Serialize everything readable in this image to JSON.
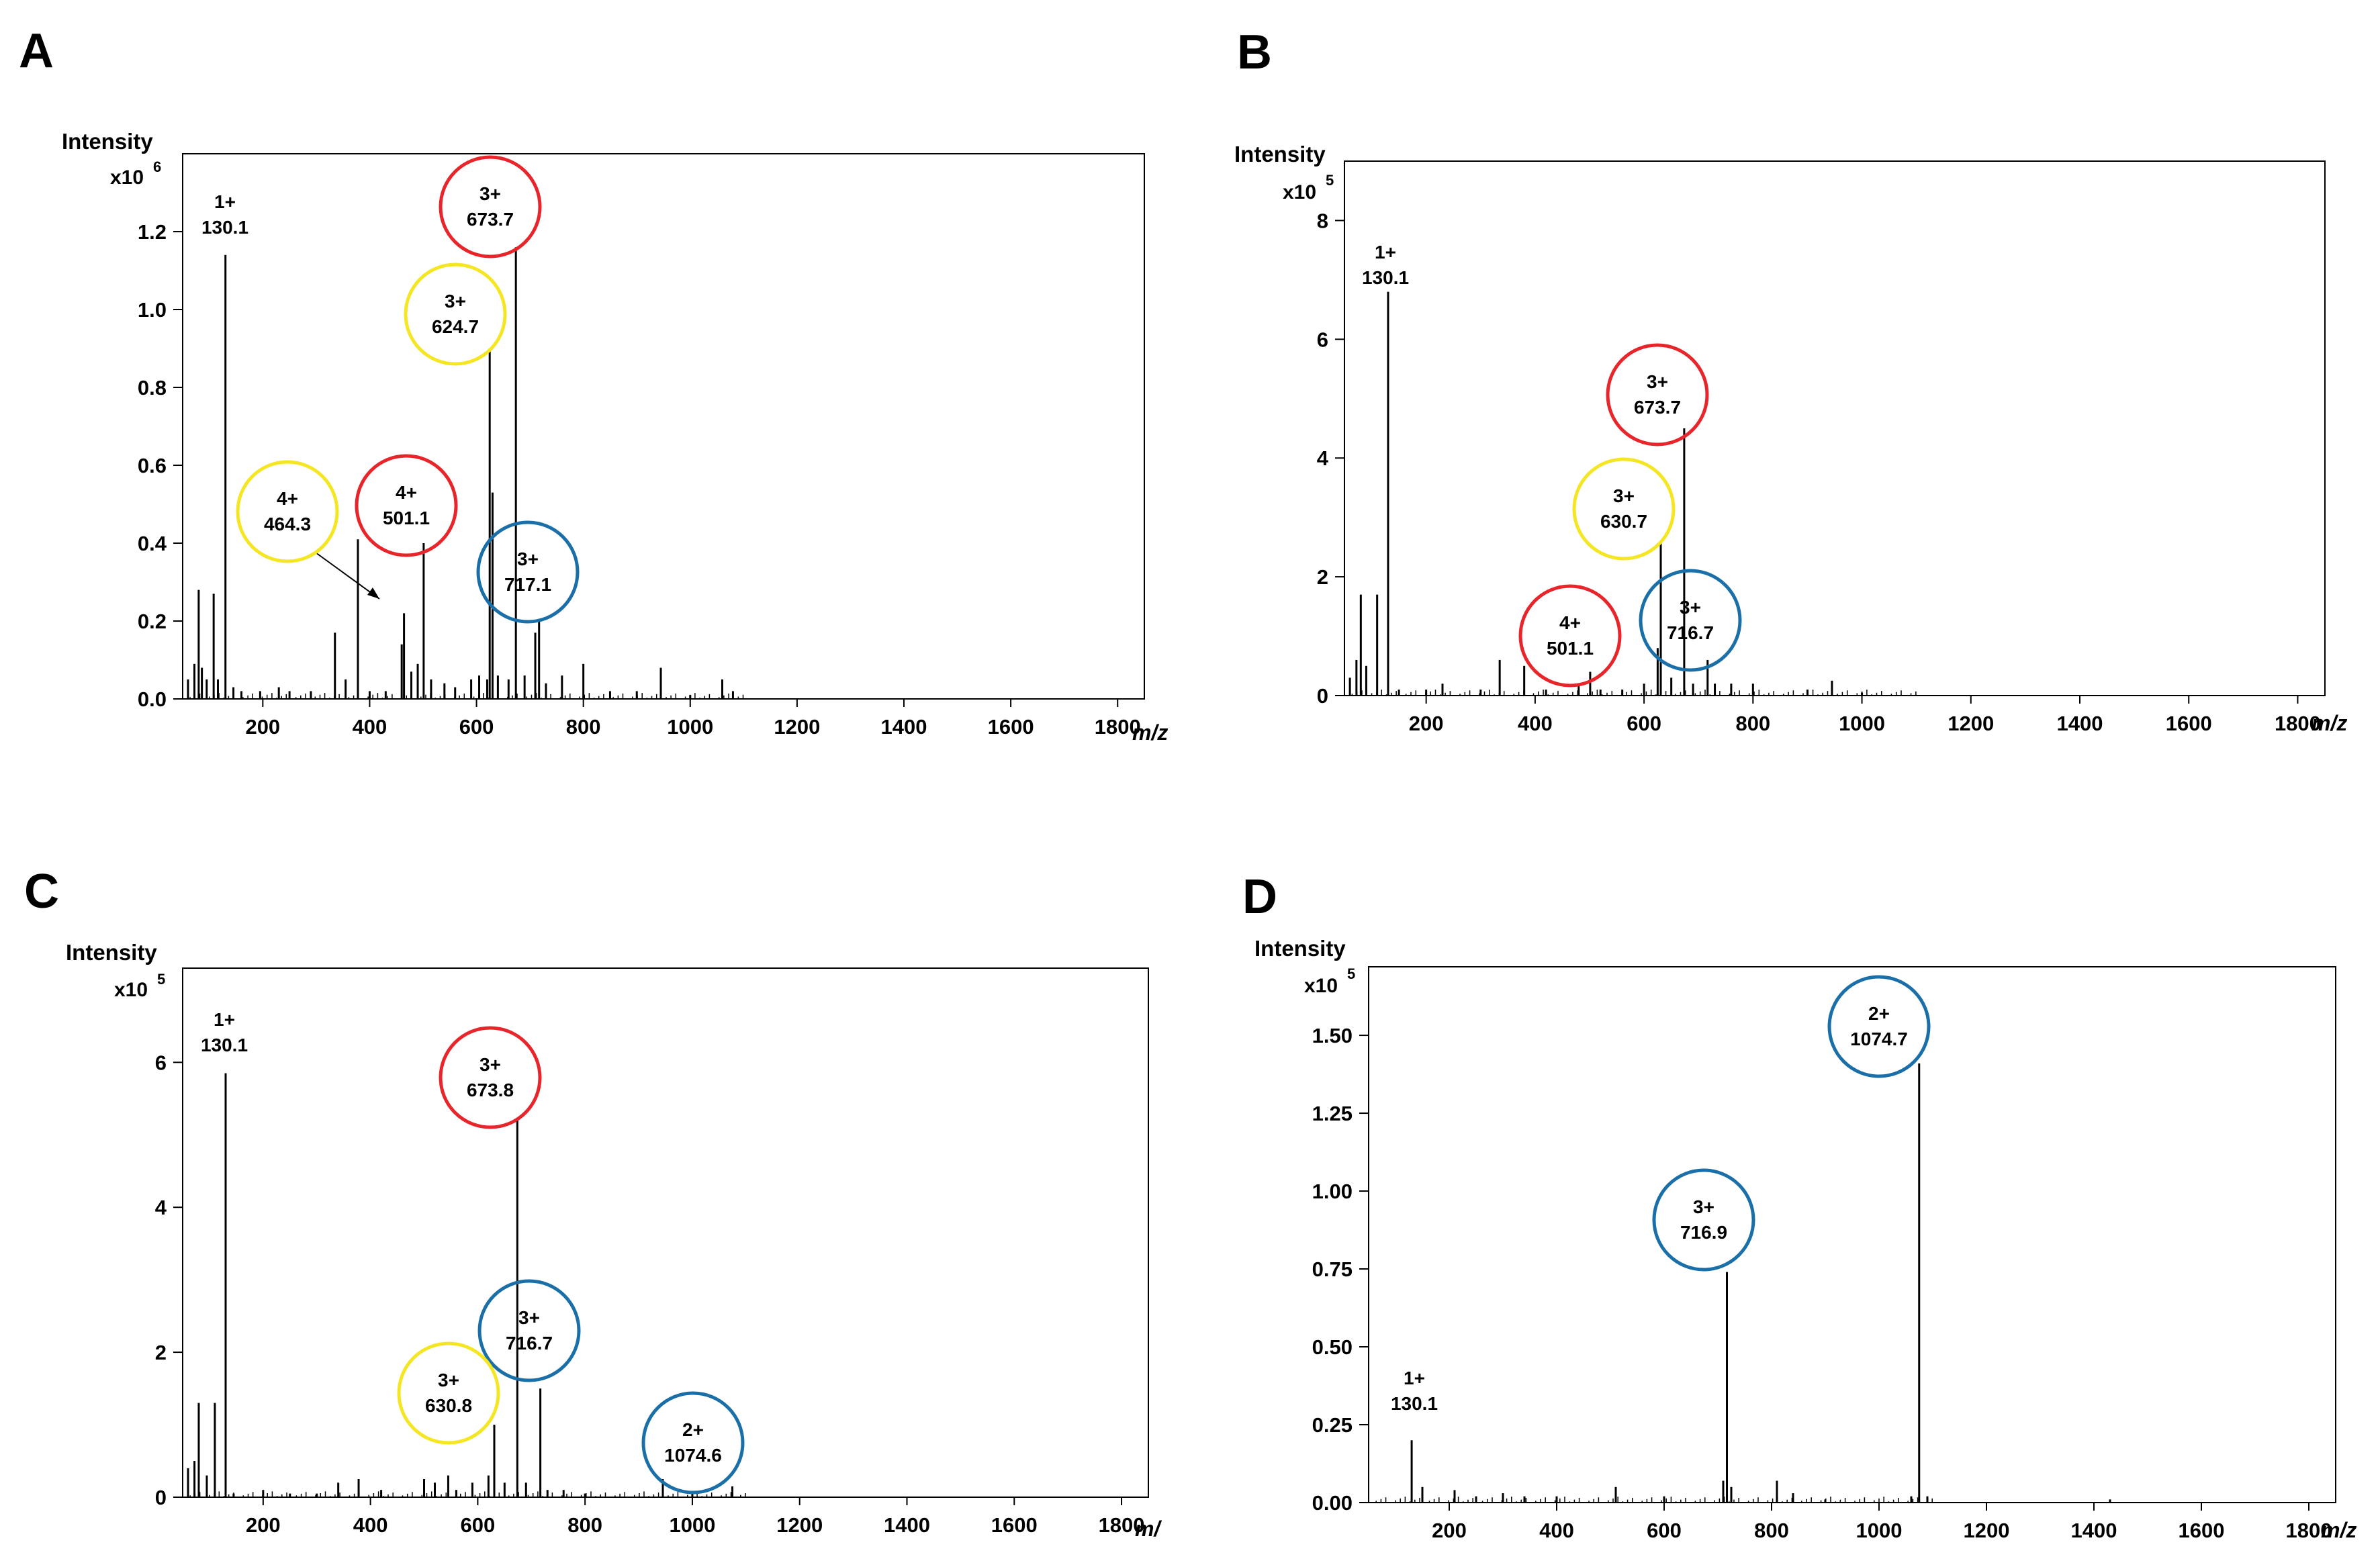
{
  "colors": {
    "red": "#e8252b",
    "yellow": "#f4e623",
    "blue": "#1a6fa8"
  },
  "chart_data": [
    {
      "panel": "A",
      "type": "line",
      "subtype": "mass-spectrum",
      "ylabel": "Intensity",
      "multiplier": "x10",
      "multiplier_exp": "6",
      "xlabel": "m/z",
      "xlim": [
        50,
        1850
      ],
      "ylim": [
        0,
        1.4
      ],
      "xticks": [
        "200",
        "400",
        "600",
        "800",
        "1000",
        "1200",
        "1400",
        "1600",
        "1800"
      ],
      "yticks": [
        "0.0",
        "0.2",
        "0.4",
        "0.6",
        "0.8",
        "1.0",
        "1.2"
      ],
      "peaks": [
        [
          60,
          0.05
        ],
        [
          72,
          0.09
        ],
        [
          80,
          0.28
        ],
        [
          86,
          0.08
        ],
        [
          95,
          0.05
        ],
        [
          108,
          0.27
        ],
        [
          116,
          0.05
        ],
        [
          130.1,
          1.14
        ],
        [
          145,
          0.03
        ],
        [
          160,
          0.02
        ],
        [
          195,
          0.02
        ],
        [
          230,
          0.03
        ],
        [
          250,
          0.02
        ],
        [
          290,
          0.02
        ],
        [
          335,
          0.17
        ],
        [
          355,
          0.05
        ],
        [
          378,
          0.41
        ],
        [
          400,
          0.02
        ],
        [
          430,
          0.02
        ],
        [
          460,
          0.14
        ],
        [
          464.3,
          0.22
        ],
        [
          478,
          0.07
        ],
        [
          490,
          0.09
        ],
        [
          501.1,
          0.4
        ],
        [
          515,
          0.05
        ],
        [
          540,
          0.04
        ],
        [
          560,
          0.03
        ],
        [
          590,
          0.05
        ],
        [
          605,
          0.06
        ],
        [
          620,
          0.05
        ],
        [
          624.7,
          0.9
        ],
        [
          630,
          0.53
        ],
        [
          640,
          0.06
        ],
        [
          660,
          0.05
        ],
        [
          673.7,
          1.16
        ],
        [
          690,
          0.06
        ],
        [
          710,
          0.17
        ],
        [
          717.1,
          0.2
        ],
        [
          730,
          0.04
        ],
        [
          760,
          0.06
        ],
        [
          800,
          0.09
        ],
        [
          850,
          0.02
        ],
        [
          900,
          0.02
        ],
        [
          945,
          0.08
        ],
        [
          1000,
          0.01
        ],
        [
          1060,
          0.05
        ],
        [
          1080,
          0.02
        ]
      ],
      "annotations": [
        {
          "charge": "1+",
          "mz": "130.1",
          "color": "none"
        },
        {
          "charge": "3+",
          "mz": "673.7",
          "color": "red"
        },
        {
          "charge": "3+",
          "mz": "624.7",
          "color": "yellow"
        },
        {
          "charge": "4+",
          "mz": "464.3",
          "color": "yellow"
        },
        {
          "charge": "4+",
          "mz": "501.1",
          "color": "red"
        },
        {
          "charge": "3+",
          "mz": "717.1",
          "color": "blue"
        }
      ]
    },
    {
      "panel": "B",
      "type": "line",
      "subtype": "mass-spectrum",
      "ylabel": "Intensity",
      "multiplier": "x10",
      "multiplier_exp": "5",
      "xlabel": "m/z",
      "xlim": [
        50,
        1850
      ],
      "ylim": [
        0,
        9
      ],
      "xticks": [
        "200",
        "400",
        "600",
        "800",
        "1000",
        "1200",
        "1400",
        "1600",
        "1800"
      ],
      "yticks": [
        "0",
        "2",
        "4",
        "6",
        "8"
      ],
      "peaks": [
        [
          60,
          0.3
        ],
        [
          72,
          0.6
        ],
        [
          80,
          1.7
        ],
        [
          90,
          0.5
        ],
        [
          110,
          1.7
        ],
        [
          130.1,
          6.8
        ],
        [
          150,
          0.1
        ],
        [
          200,
          0.1
        ],
        [
          230,
          0.2
        ],
        [
          300,
          0.1
        ],
        [
          335,
          0.6
        ],
        [
          380,
          0.5
        ],
        [
          420,
          0.1
        ],
        [
          480,
          0.2
        ],
        [
          501.1,
          0.4
        ],
        [
          520,
          0.1
        ],
        [
          560,
          0.1
        ],
        [
          600,
          0.2
        ],
        [
          625,
          0.8
        ],
        [
          630.7,
          2.6
        ],
        [
          650,
          0.3
        ],
        [
          673.7,
          4.5
        ],
        [
          690,
          0.2
        ],
        [
          716.7,
          0.6
        ],
        [
          730,
          0.2
        ],
        [
          760,
          0.2
        ],
        [
          800,
          0.2
        ],
        [
          900,
          0.1
        ],
        [
          945,
          0.25
        ],
        [
          1000,
          0.05
        ]
      ],
      "annotations": [
        {
          "charge": "1+",
          "mz": "130.1",
          "color": "none"
        },
        {
          "charge": "3+",
          "mz": "673.7",
          "color": "red"
        },
        {
          "charge": "3+",
          "mz": "630.7",
          "color": "yellow"
        },
        {
          "charge": "4+",
          "mz": "501.1",
          "color": "red"
        },
        {
          "charge": "3+",
          "mz": "716.7",
          "color": "blue"
        }
      ]
    },
    {
      "panel": "C",
      "type": "line",
      "subtype": "mass-spectrum",
      "ylabel": "Intensity",
      "multiplier": "x10",
      "multiplier_exp": "5",
      "xlabel": "m/",
      "xlim": [
        50,
        1850
      ],
      "ylim": [
        0,
        7.3
      ],
      "xticks": [
        "200",
        "400",
        "600",
        "800",
        "1000",
        "1200",
        "1400",
        "1600",
        "1800"
      ],
      "yticks": [
        "0",
        "2",
        "4",
        "6"
      ],
      "peaks": [
        [
          60,
          0.4
        ],
        [
          72,
          0.5
        ],
        [
          80,
          1.3
        ],
        [
          95,
          0.3
        ],
        [
          110,
          1.3
        ],
        [
          130.1,
          5.85
        ],
        [
          145,
          0.05
        ],
        [
          200,
          0.1
        ],
        [
          250,
          0.05
        ],
        [
          300,
          0.05
        ],
        [
          340,
          0.2
        ],
        [
          378,
          0.25
        ],
        [
          420,
          0.1
        ],
        [
          500,
          0.25
        ],
        [
          520,
          0.2
        ],
        [
          545,
          0.3
        ],
        [
          560,
          0.1
        ],
        [
          590,
          0.2
        ],
        [
          620,
          0.3
        ],
        [
          630.8,
          1.0
        ],
        [
          650,
          0.2
        ],
        [
          673.8,
          5.2
        ],
        [
          690,
          0.2
        ],
        [
          716.7,
          1.5
        ],
        [
          730,
          0.1
        ],
        [
          760,
          0.1
        ],
        [
          800,
          0.05
        ],
        [
          945,
          0.25
        ],
        [
          1000,
          0.05
        ],
        [
          1074.6,
          0.15
        ]
      ],
      "annotations": [
        {
          "charge": "1+",
          "mz": "130.1",
          "color": "none"
        },
        {
          "charge": "3+",
          "mz": "673.8",
          "color": "red"
        },
        {
          "charge": "3+",
          "mz": "716.7",
          "color": "blue"
        },
        {
          "charge": "3+",
          "mz": "630.8",
          "color": "yellow"
        },
        {
          "charge": "2+",
          "mz": "1074.6",
          "color": "blue"
        }
      ]
    },
    {
      "panel": "D",
      "type": "line",
      "subtype": "mass-spectrum",
      "ylabel": "Intensity",
      "multiplier": "x10",
      "multiplier_exp": "5",
      "xlabel": "m/z",
      "xlim": [
        50,
        1850
      ],
      "ylim": [
        0,
        1.72
      ],
      "xticks": [
        "200",
        "400",
        "600",
        "800",
        "1000",
        "1200",
        "1400",
        "1600",
        "1800"
      ],
      "yticks": [
        "0.00",
        "0.25",
        "0.50",
        "0.75",
        "1.00",
        "1.25",
        "1.50"
      ],
      "peaks": [
        [
          130.1,
          0.2
        ],
        [
          150,
          0.05
        ],
        [
          210,
          0.04
        ],
        [
          250,
          0.02
        ],
        [
          300,
          0.03
        ],
        [
          340,
          0.02
        ],
        [
          400,
          0.02
        ],
        [
          510,
          0.05
        ],
        [
          600,
          0.02
        ],
        [
          710,
          0.07
        ],
        [
          716.9,
          0.74
        ],
        [
          725,
          0.05
        ],
        [
          810,
          0.07
        ],
        [
          840,
          0.03
        ],
        [
          900,
          0.01
        ],
        [
          1060,
          0.02
        ],
        [
          1074.7,
          1.41
        ],
        [
          1090,
          0.02
        ],
        [
          1430,
          0.01
        ]
      ],
      "annotations": [
        {
          "charge": "2+",
          "mz": "1074.7",
          "color": "blue"
        },
        {
          "charge": "3+",
          "mz": "716.9",
          "color": "blue"
        },
        {
          "charge": "1+",
          "mz": "130.1",
          "color": "none"
        }
      ]
    }
  ]
}
